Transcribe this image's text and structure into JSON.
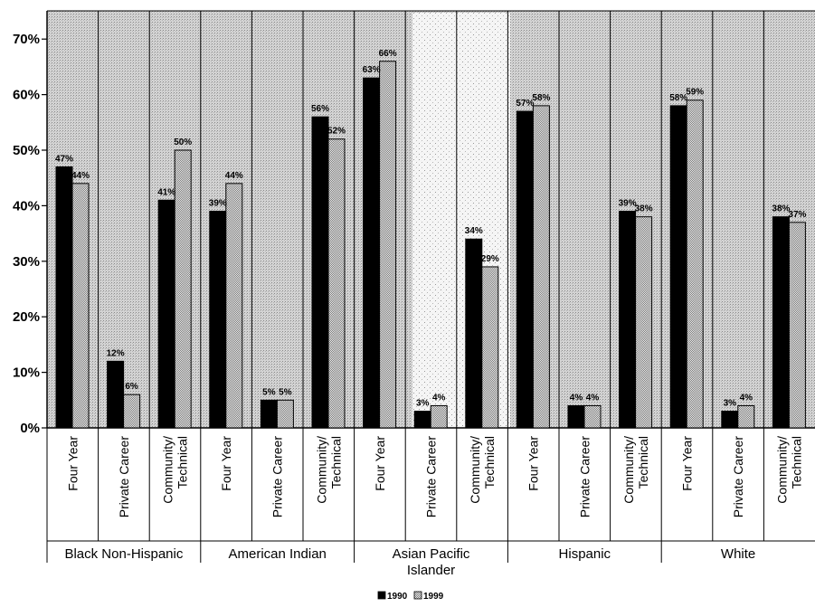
{
  "chart_data": {
    "type": "bar",
    "title": "",
    "xlabel": "",
    "ylabel": "",
    "ylim": [
      0,
      75
    ],
    "yticks": [
      0,
      10,
      20,
      30,
      40,
      50,
      60,
      70
    ],
    "ytick_labels": [
      "0%",
      "10%",
      "20%",
      "30%",
      "40%",
      "50%",
      "60%",
      "70%"
    ],
    "grid": false,
    "legend_position": "bottom-center",
    "groups": [
      {
        "name": "Black Non-Hispanic",
        "categories": [
          "Four Year",
          "Private Career",
          "Community/ Technical"
        ]
      },
      {
        "name": "American Indian",
        "categories": [
          "Four Year",
          "Private Career",
          "Community/ Technical"
        ]
      },
      {
        "name": "Asian Pacific Islander",
        "categories": [
          "Four Year",
          "Private Career",
          "Community/ Technical"
        ]
      },
      {
        "name": "Hispanic",
        "categories": [
          "Four Year",
          "Private Career",
          "Community/ Technical"
        ]
      },
      {
        "name": "White",
        "categories": [
          "Four Year",
          "Private Career",
          "Community/ Technical"
        ]
      }
    ],
    "series": [
      {
        "name": "1990",
        "color": "#000000",
        "values": [
          47,
          12,
          41,
          39,
          5,
          56,
          63,
          3,
          34,
          57,
          4,
          39,
          58,
          3,
          38
        ],
        "value_labels": [
          "47%",
          "12%",
          "41%",
          "39%",
          "5%",
          "56%",
          "63%",
          "3%",
          "34%",
          "57%",
          "4%",
          "39%",
          "58%",
          "3%",
          "38%"
        ]
      },
      {
        "name": "1999",
        "color": "#aaaaaa",
        "values": [
          44,
          6,
          50,
          44,
          5,
          52,
          66,
          4,
          29,
          58,
          4,
          38,
          59,
          4,
          37
        ],
        "value_labels": [
          "44%",
          "6%",
          "50%",
          "44%",
          "5%",
          "52%",
          "66%",
          "4%",
          "29%",
          "58%",
          "4%",
          "38%",
          "59%",
          "4%",
          "37%"
        ]
      }
    ]
  }
}
